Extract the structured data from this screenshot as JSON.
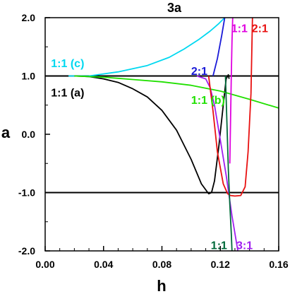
{
  "chart_data": {
    "type": "line",
    "title": "3a",
    "xlabel": "h",
    "ylabel": "a",
    "xlim": [
      0.0,
      0.16
    ],
    "ylim": [
      -2.0,
      2.0
    ],
    "xticks": [
      "0.00",
      "0.04",
      "0.08",
      "0.12",
      "0.16"
    ],
    "xtick_values": [
      0.0,
      0.04,
      0.08,
      0.12,
      0.16
    ],
    "yticks": [
      "2.0",
      "1.0",
      "0.0",
      "-1.0",
      "-2.0"
    ],
    "ytick_values": [
      2.0,
      1.0,
      0.0,
      -1.0,
      -2.0
    ],
    "grid": false,
    "legend": "none",
    "reference_lines": [
      1.0,
      -1.0
    ],
    "series": [
      {
        "color": "#00d8f0",
        "x": [
          0.016,
          0.03,
          0.05,
          0.07,
          0.085,
          0.095,
          0.105,
          0.113,
          0.119,
          0.123
        ],
        "y": [
          1.0,
          1.0,
          1.07,
          1.18,
          1.32,
          1.46,
          1.62,
          1.77,
          1.9,
          2.0
        ]
      },
      {
        "color": "#000000",
        "x": [
          0.02,
          0.03,
          0.04,
          0.05,
          0.06,
          0.07,
          0.08,
          0.09,
          0.1,
          0.107,
          0.112,
          0.114,
          0.116,
          0.119,
          0.122,
          0.124,
          0.1255,
          0.126
        ],
        "y": [
          1.0,
          0.99,
          0.95,
          0.89,
          0.78,
          0.64,
          0.41,
          0.07,
          -0.43,
          -0.85,
          -1.02,
          -1.0,
          -0.8,
          -0.2,
          0.5,
          0.95,
          1.02,
          0.95
        ]
      },
      {
        "color": "#20e000",
        "x": [
          0.02,
          0.04,
          0.06,
          0.08,
          0.1,
          0.12,
          0.14,
          0.16
        ],
        "y": [
          1.0,
          0.98,
          0.94,
          0.9,
          0.84,
          0.74,
          0.6,
          0.45
        ]
      },
      {
        "color": "#1a1ad8",
        "x": [
          0.115,
          0.118,
          0.121,
          0.123
        ],
        "y": [
          1.0,
          1.3,
          1.7,
          2.0
        ]
      },
      {
        "color": "#a020f0",
        "x": [
          0.104,
          0.11,
          0.113,
          0.116,
          0.12,
          0.124,
          0.128,
          0.132
        ],
        "y": [
          1.0,
          0.95,
          0.8,
          0.5,
          -0.1,
          -0.7,
          -1.4,
          -2.0
        ]
      },
      {
        "color": "#e000e0",
        "x": [
          0.1265,
          0.127,
          0.1275,
          0.128,
          0.1285
        ],
        "y": [
          -0.5,
          0.2,
          1.0,
          1.6,
          2.0
        ]
      },
      {
        "color": "#e81010",
        "x": [
          0.112,
          0.115,
          0.118,
          0.122,
          0.125,
          0.127,
          0.13,
          0.134,
          0.137,
          0.139,
          0.141,
          0.142
        ],
        "y": [
          1.0,
          0.4,
          -0.3,
          -0.85,
          -1.02,
          -1.05,
          -1.06,
          -1.05,
          -0.9,
          -0.3,
          0.7,
          2.0
        ]
      },
      {
        "color": "#006a3a",
        "x": [
          0.1235,
          0.1245,
          0.1255,
          0.1265,
          0.1275,
          0.128
        ],
        "y": [
          1.0,
          0.2,
          -0.6,
          -1.2,
          -1.7,
          -2.0
        ]
      }
    ],
    "annotations": [
      {
        "text": "1:1 (c)",
        "color": "#00d8f0",
        "x": 0.004,
        "y": 1.15
      },
      {
        "text": "1:1 (a)",
        "color": "#000000",
        "x": 0.004,
        "y": 0.65
      },
      {
        "text": "1:1 (b)",
        "color": "#20e000",
        "x": 0.1,
        "y": 0.52
      },
      {
        "text": "2:1",
        "color": "#1a1ad8",
        "x": 0.1,
        "y": 1.02
      },
      {
        "text": "1:1",
        "color": "#e000e0",
        "x": 0.1275,
        "y": 1.75
      },
      {
        "text": "2:1",
        "color": "#e81010",
        "x": 0.1415,
        "y": 1.75
      },
      {
        "text": "1:1",
        "color": "#006a3a",
        "x": 0.1135,
        "y": -1.97
      },
      {
        "text": "3:1",
        "color": "#a020f0",
        "x": 0.131,
        "y": -1.97
      }
    ]
  }
}
